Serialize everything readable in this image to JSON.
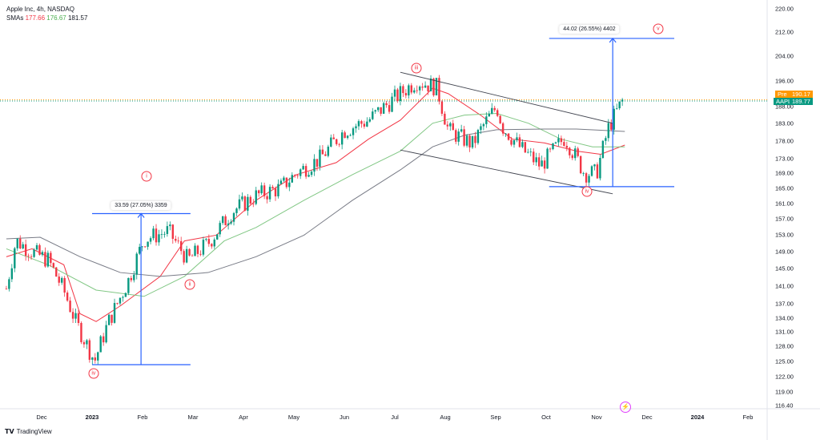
{
  "header": {
    "title": "Apple Inc, 4h, NASDAQ",
    "sma_label": "SMAs",
    "sma_values": [
      "177.66",
      "176.67",
      "181.57"
    ]
  },
  "badges": {
    "pre_label": "Pre",
    "pre_value": "190.17",
    "sym_label": "AAPL",
    "sym_value": "189.77"
  },
  "measures": [
    {
      "label": "33.59 (27.05%) 3359"
    },
    {
      "label": "44.02 (26.55%) 4402"
    }
  ],
  "waves": [
    "i",
    "ii",
    "iii",
    "iv",
    "iv",
    "v"
  ],
  "footer": {
    "logo": "TradingView"
  },
  "colors": {
    "up": "#089981",
    "down": "#f23645",
    "sma_fast": "#f23645",
    "sma_mid": "#81c784",
    "sma_slow": "#787b86",
    "measure": "#2962ff",
    "pre": "#ff9800"
  },
  "chart_data": {
    "type": "candlestick",
    "title": "Apple Inc, 4h, NASDAQ",
    "x_unit": "months since Dec 2022",
    "xticks": [
      "Dec",
      "2023",
      "Feb",
      "Mar",
      "Apr",
      "May",
      "Jun",
      "Jul",
      "Aug",
      "Sep",
      "Oct",
      "Nov",
      "Dec",
      "2024",
      "Feb"
    ],
    "yticks": [
      "220.00",
      "212.00",
      "204.00",
      "196.00",
      "188.00",
      "183.00",
      "178.00",
      "173.00",
      "169.00",
      "165.00",
      "161.00",
      "157.00",
      "153.00",
      "149.00",
      "145.00",
      "141.00",
      "137.00",
      "134.00",
      "131.00",
      "128.00",
      "125.00",
      "122.00",
      "119.00",
      "116.40"
    ],
    "ylim": [
      116.4,
      220
    ],
    "yscale": "log",
    "price_path": [
      [
        -0.7,
        140.4
      ],
      [
        -0.51,
        151.7
      ],
      [
        -0.19,
        149
      ],
      [
        0.13,
        147
      ],
      [
        0.44,
        140
      ],
      [
        0.68,
        133
      ],
      [
        1.05,
        125
      ],
      [
        1.32,
        133
      ],
      [
        1.71,
        142
      ],
      [
        2.03,
        152
      ],
      [
        2.51,
        154
      ],
      [
        2.9,
        147
      ],
      [
        3.3,
        151
      ],
      [
        3.78,
        159
      ],
      [
        4.25,
        163
      ],
      [
        4.73,
        165
      ],
      [
        5.05,
        169
      ],
      [
        5.52,
        173
      ],
      [
        6.0,
        181
      ],
      [
        6.48,
        184
      ],
      [
        6.95,
        190
      ],
      [
        7.43,
        196
      ],
      [
        7.83,
        194
      ],
      [
        8.06,
        181
      ],
      [
        8.54,
        177
      ],
      [
        8.78,
        183
      ],
      [
        9.02,
        188
      ],
      [
        9.14,
        182
      ],
      [
        9.49,
        176
      ],
      [
        9.89,
        171
      ],
      [
        10.37,
        179
      ],
      [
        10.76,
        169
      ],
      [
        11.0,
        169
      ],
      [
        11.24,
        182
      ],
      [
        11.52,
        190
      ]
    ],
    "series": [
      {
        "name": "SMA fast",
        "points": [
          [
            -0.7,
            147.8
          ],
          [
            -0.19,
            149.7
          ],
          [
            0.44,
            145.9
          ],
          [
            0.76,
            134.9
          ],
          [
            1.08,
            133.2
          ],
          [
            1.56,
            136.6
          ],
          [
            2.35,
            143.2
          ],
          [
            2.83,
            151.6
          ],
          [
            3.46,
            153.0
          ],
          [
            4.25,
            161.8
          ],
          [
            5.05,
            168.6
          ],
          [
            5.84,
            171.9
          ],
          [
            6.48,
            178.5
          ],
          [
            7.11,
            184.0
          ],
          [
            7.75,
            193.7
          ],
          [
            8.06,
            192.0
          ],
          [
            8.7,
            185.5
          ],
          [
            9.33,
            178.5
          ],
          [
            9.97,
            177.4
          ],
          [
            10.6,
            175.1
          ],
          [
            11.08,
            174.2
          ],
          [
            11.56,
            176.8
          ]
        ]
      },
      {
        "name": "SMA mid",
        "points": [
          [
            -0.7,
            149.7
          ],
          [
            0.13,
            145.9
          ],
          [
            1.08,
            140.1
          ],
          [
            2.03,
            138.7
          ],
          [
            2.83,
            143.2
          ],
          [
            3.62,
            151.6
          ],
          [
            4.25,
            154.9
          ],
          [
            5.2,
            161.8
          ],
          [
            6.16,
            168.6
          ],
          [
            7.11,
            175.1
          ],
          [
            7.75,
            183.1
          ],
          [
            8.38,
            185.5
          ],
          [
            9.02,
            186.0
          ],
          [
            9.65,
            183.1
          ],
          [
            10.29,
            178.5
          ],
          [
            10.92,
            176.3
          ],
          [
            11.56,
            176.3
          ]
        ]
      },
      {
        "name": "SMA slow",
        "points": [
          [
            -0.7,
            152.1
          ],
          [
            -0.03,
            152.5
          ],
          [
            0.76,
            147.8
          ],
          [
            1.56,
            144.1
          ],
          [
            2.35,
            143.2
          ],
          [
            3.3,
            144.1
          ],
          [
            4.25,
            147.8
          ],
          [
            5.2,
            153.0
          ],
          [
            6.16,
            161.8
          ],
          [
            7.11,
            169.9
          ],
          [
            7.75,
            176.3
          ],
          [
            8.38,
            179.6
          ],
          [
            9.02,
            181.2
          ],
          [
            9.97,
            181.4
          ],
          [
            10.6,
            181.4
          ],
          [
            11.56,
            180.7
          ]
        ]
      }
    ],
    "channel": {
      "upper": [
        [
          7.11,
          198.7
        ],
        [
          11.32,
          183.1
        ]
      ],
      "lower": [
        [
          7.11,
          175.4
        ],
        [
          11.32,
          163.5
        ]
      ]
    },
    "measure_ranges": [
      {
        "from": 124.3,
        "to": 158.4,
        "x": [
          1.0,
          2.95
        ],
        "arrow_x": 1.97
      },
      {
        "from": 165.4,
        "to": 209.8,
        "x": [
          10.06,
          12.54
        ],
        "arrow_x": 11.32
      }
    ],
    "wave_labels": [
      [
        2.08,
        168.2
      ],
      [
        2.937,
        141.3
      ],
      [
        7.43,
        200
      ],
      [
        1.03,
        122.6
      ],
      [
        10.81,
        164.1
      ],
      [
        12.22,
        213
      ]
    ],
    "last_prices": {
      "pre": 190.17,
      "close": 189.77
    }
  }
}
